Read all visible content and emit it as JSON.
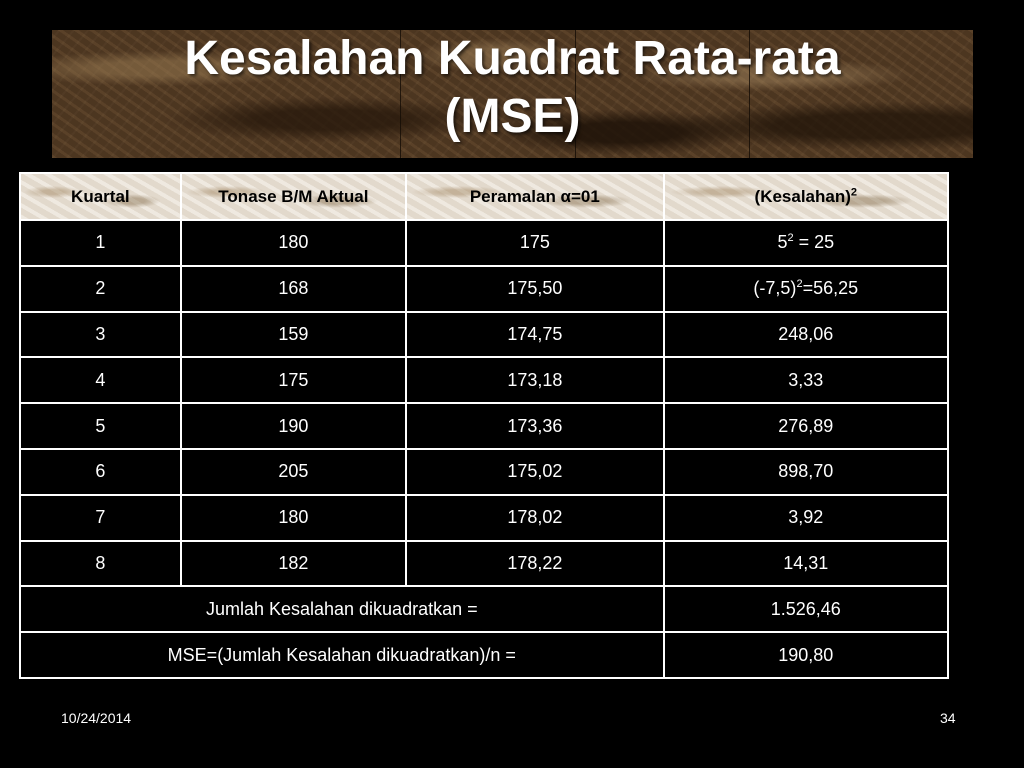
{
  "slide": {
    "title_line1": "Kesalahan Kuadrat Rata-rata",
    "title_line2": "(MSE)",
    "footer_date": "10/24/2014",
    "page_number": "34"
  },
  "table": {
    "headers": {
      "quarter": "Kuartal",
      "actual": "Tonase B/M Aktual",
      "forecast": "Peramalan α=01",
      "error_base": "(Kesalahan)",
      "error_exp": "2"
    },
    "rows": [
      {
        "quarter": "1",
        "actual": "180",
        "forecast": "175",
        "error_pre": "5",
        "error_sup": "2",
        "error_post": " = 25"
      },
      {
        "quarter": "2",
        "actual": "168",
        "forecast": "175,50",
        "error_pre": "(-7,5)",
        "error_sup": "2",
        "error_post": "=56,25"
      },
      {
        "quarter": "3",
        "actual": "159",
        "forecast": "174,75",
        "error_pre": "248,06",
        "error_sup": "",
        "error_post": ""
      },
      {
        "quarter": "4",
        "actual": "175",
        "forecast": "173,18",
        "error_pre": "3,33",
        "error_sup": "",
        "error_post": ""
      },
      {
        "quarter": "5",
        "actual": "190",
        "forecast": "173,36",
        "error_pre": "276,89",
        "error_sup": "",
        "error_post": ""
      },
      {
        "quarter": "6",
        "actual": "205",
        "forecast": "175,02",
        "error_pre": "898,70",
        "error_sup": "",
        "error_post": ""
      },
      {
        "quarter": "7",
        "actual": "180",
        "forecast": "178,02",
        "error_pre": "3,92",
        "error_sup": "",
        "error_post": ""
      },
      {
        "quarter": "8",
        "actual": "182",
        "forecast": "178,22",
        "error_pre": "14,31",
        "error_sup": "",
        "error_post": ""
      }
    ],
    "sum_label": "Jumlah Kesalahan dikuadratkan =",
    "sum_value": "1.526,46",
    "mse_label": "MSE=(Jumlah Kesalahan dikuadratkan)/n =",
    "mse_value": "190,80"
  },
  "colors": {
    "background": "#000000",
    "text": "#ffffff",
    "header_text": "#000000",
    "banner_brown": "#5a4128"
  }
}
